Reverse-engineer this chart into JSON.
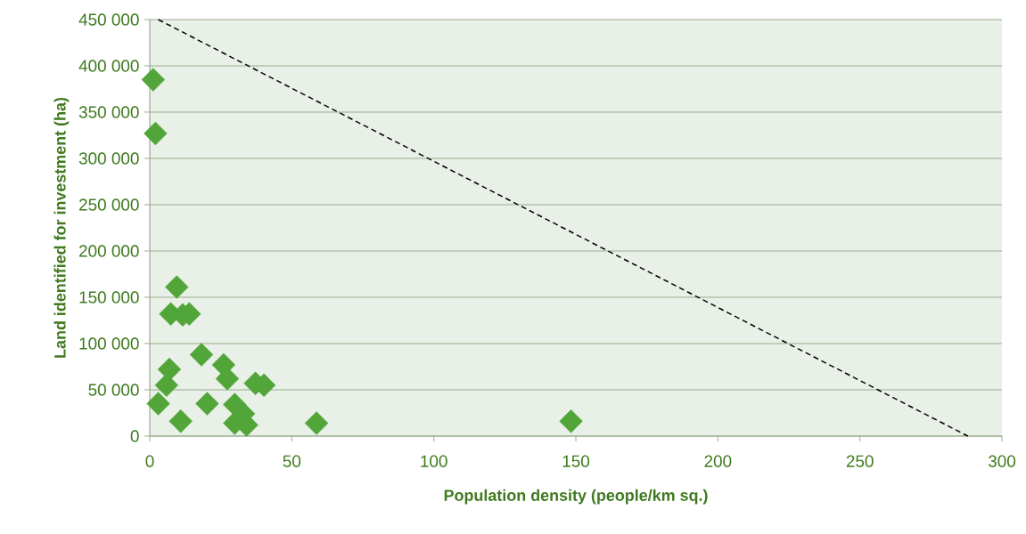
{
  "chart_data": {
    "type": "scatter",
    "xlabel": "Population density (people/km sq.)",
    "ylabel": "Land identified for investment (ha)",
    "xlim": [
      0,
      300
    ],
    "xticks": [
      0,
      50,
      100,
      150,
      200,
      250,
      300
    ],
    "ylim": [
      0,
      450000
    ],
    "yticks": [
      {
        "value": 0,
        "label": "0"
      },
      {
        "value": 50000,
        "label": "50 000"
      },
      {
        "value": 100000,
        "label": "100 000"
      },
      {
        "value": 150000,
        "label": "150 000"
      },
      {
        "value": 200000,
        "label": "200 000"
      },
      {
        "value": 250000,
        "label": "250 000"
      },
      {
        "value": 300000,
        "label": "300 000"
      },
      {
        "value": 350000,
        "label": "350 000"
      },
      {
        "value": 400000,
        "label": "400 000"
      },
      {
        "value": 450000,
        "label": "450 000"
      }
    ],
    "grid": "y",
    "marker": "diamond",
    "series": [
      {
        "color": "#52a639",
        "x": [
          1.2,
          2.0,
          9.5,
          7.4,
          11.6,
          13.9,
          18.2,
          26.0,
          27.3,
          6.9,
          5.9,
          3.0,
          10.9,
          20.2,
          29.9,
          37.2,
          40.2,
          33.0,
          29.9,
          34.1,
          58.7,
          148.3
        ],
        "values": [
          385000,
          327000,
          161000,
          132000,
          131000,
          132000,
          88000,
          77000,
          62000,
          72000,
          55000,
          35000,
          16000,
          35000,
          34000,
          57000,
          55000,
          24000,
          14000,
          12000,
          14000,
          16000
        ]
      },
      {
        "type": "line",
        "color": "#000000",
        "line_style": "dashed",
        "marker": "none",
        "x": [
          3,
          288
        ],
        "values": [
          450000,
          0
        ]
      }
    ]
  }
}
